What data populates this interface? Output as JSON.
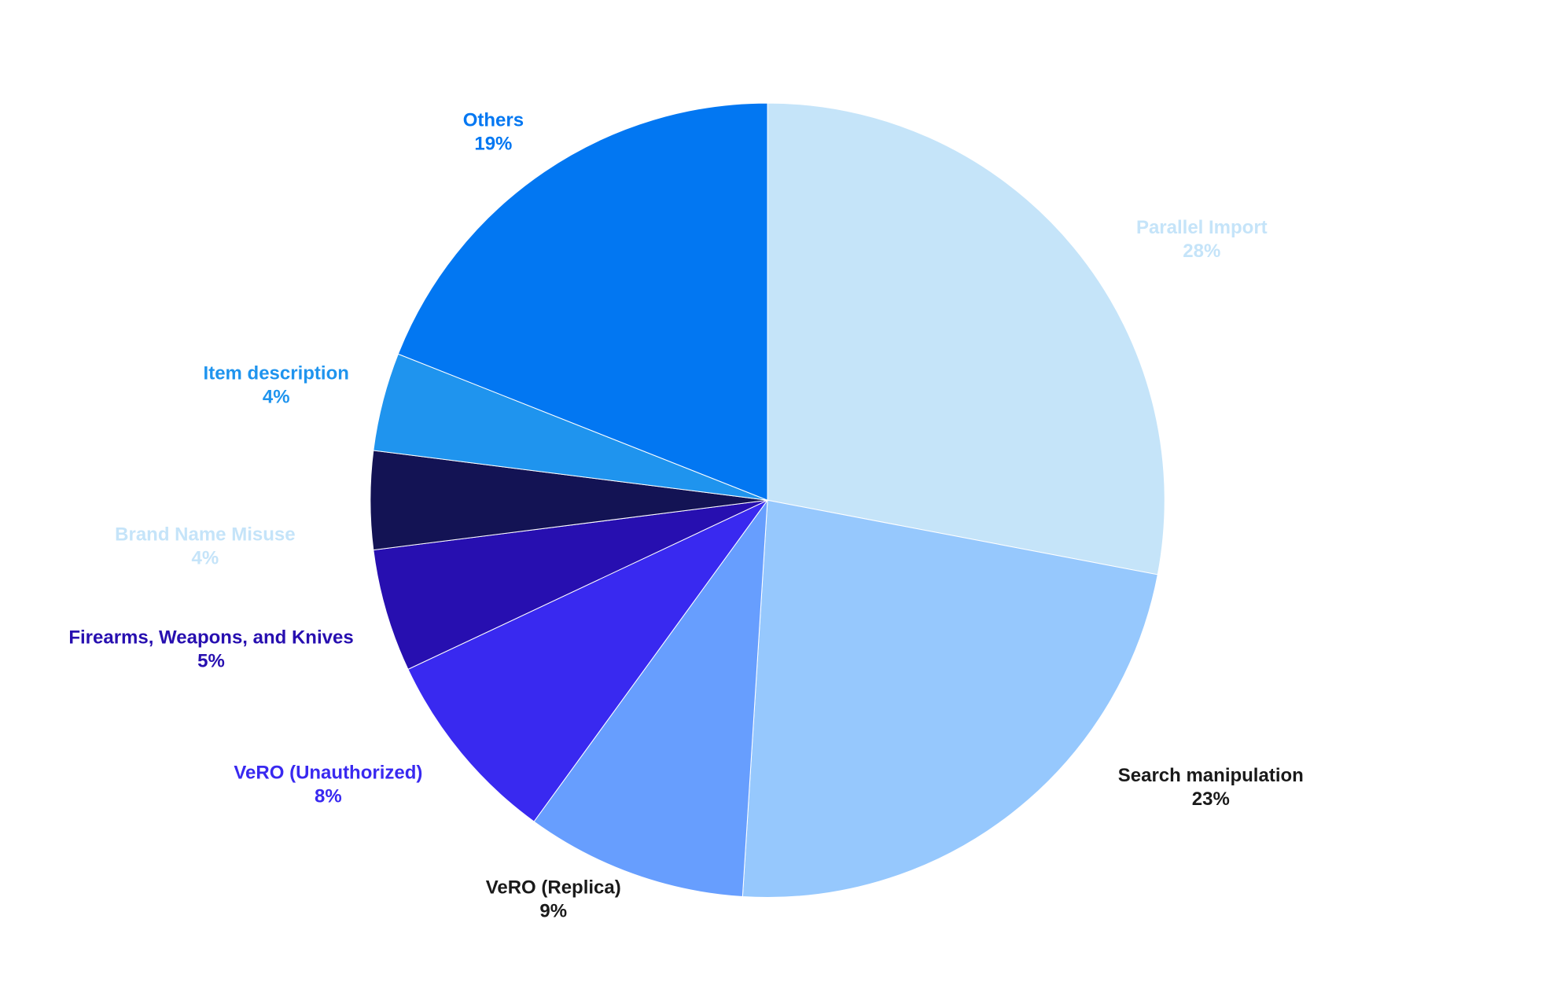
{
  "chart_data": {
    "type": "pie",
    "categories": [
      "Parallel Import",
      "Search manipulation",
      "VeRO (Replica)",
      "VeRO (Unauthorized)",
      "Firearms, Weapons, and Knives",
      "Brand Name Misuse",
      "Item description",
      "Others"
    ],
    "values": [
      28,
      23,
      9,
      8,
      5,
      4,
      4,
      19
    ],
    "value_labels": [
      "28%",
      "23%",
      "9%",
      "8%",
      "5%",
      "4%",
      "4%",
      "19%"
    ],
    "colors": [
      "#c5e4f9",
      "#96c8fd",
      "#679efe",
      "#3929f0",
      "#270fb0",
      "#131354",
      "#1f94ee",
      "#0277f2"
    ],
    "label_colors": [
      "#c5e4f9",
      "#1a1a1a",
      "#1a1a1a",
      "#3929f0",
      "#270fb0",
      "#c5e4f9",
      "#1f94ee",
      "#0277f2"
    ]
  }
}
